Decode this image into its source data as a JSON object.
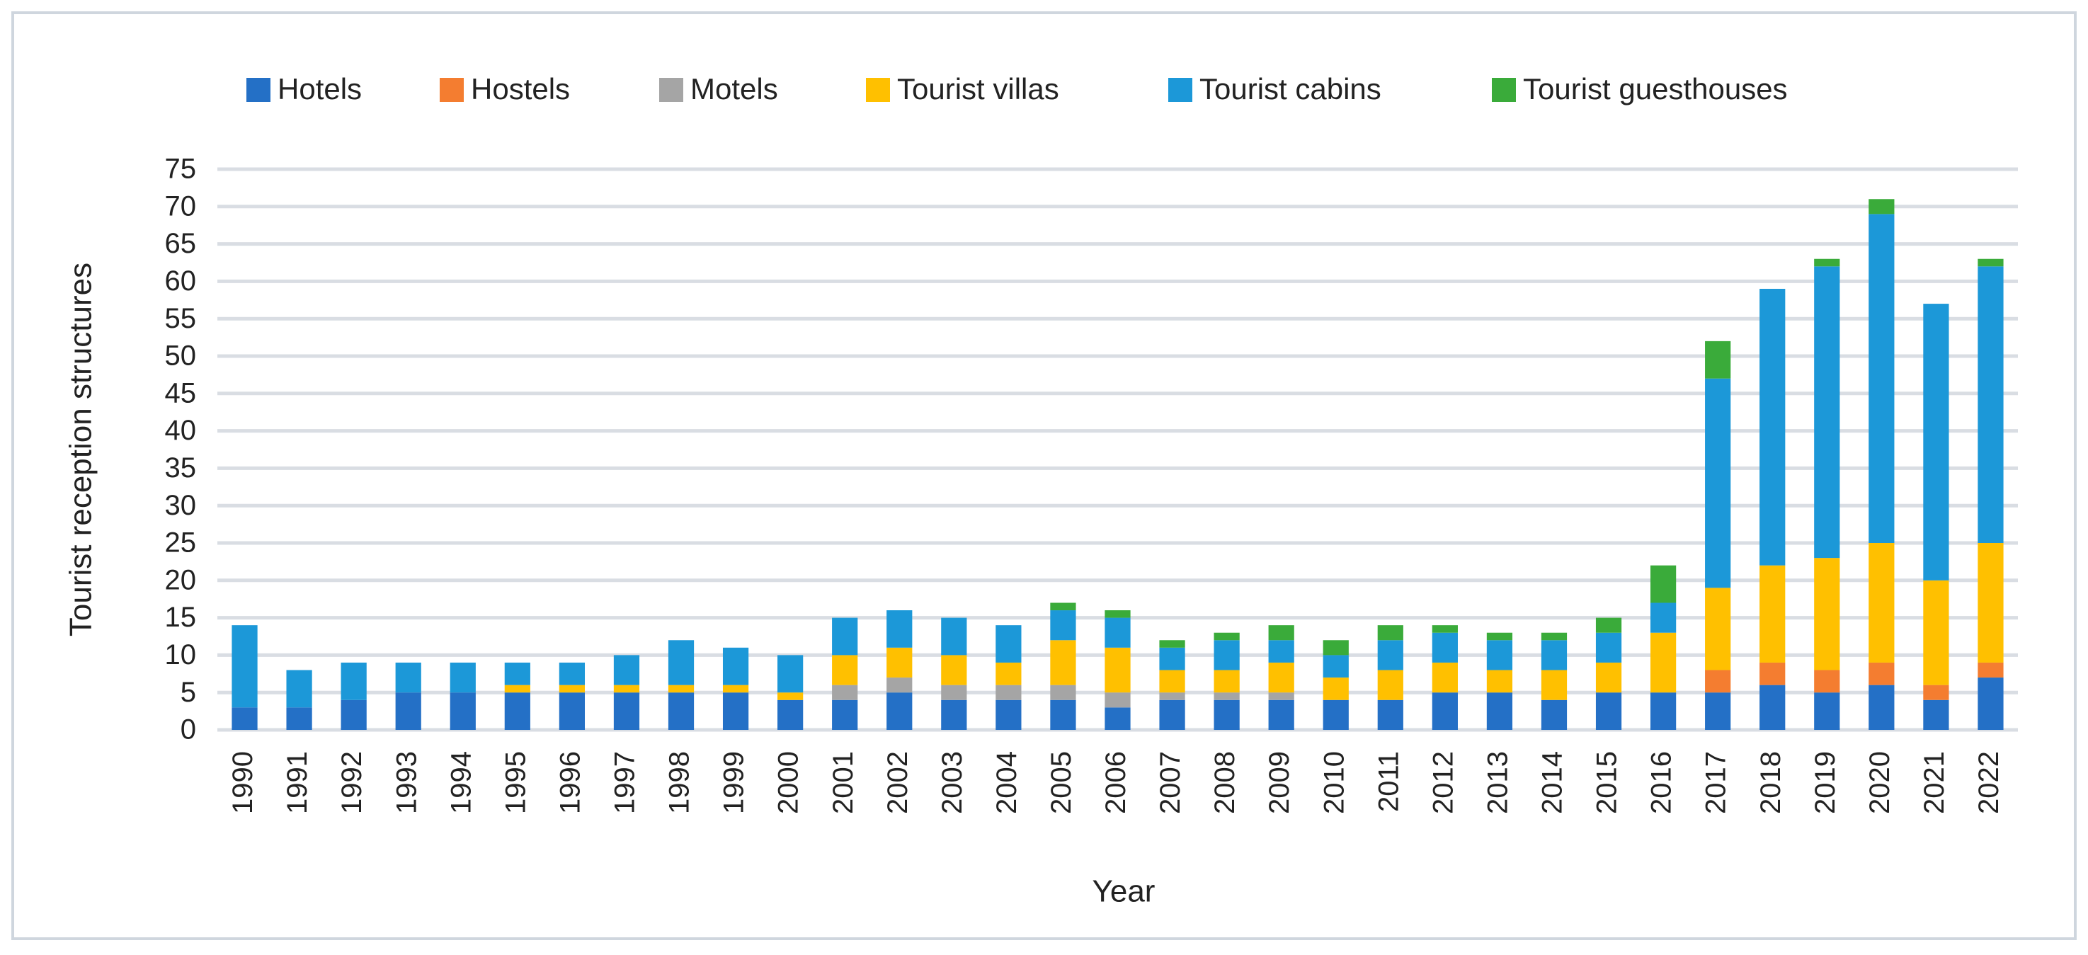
{
  "chart_data": {
    "type": "stacked-bar",
    "x_label": "Year",
    "y_label": "Tourist reception structures",
    "categories": [
      "1990",
      "1991",
      "1992",
      "1993",
      "1994",
      "1995",
      "1996",
      "1997",
      "1998",
      "1999",
      "2000",
      "2001",
      "2002",
      "2003",
      "2004",
      "2005",
      "2006",
      "2007",
      "2008",
      "2009",
      "2010",
      "2011",
      "2012",
      "2013",
      "2014",
      "2015",
      "2016",
      "2017",
      "2018",
      "2019",
      "2020",
      "2021",
      "2022"
    ],
    "series": [
      {
        "name": "Hotels",
        "color": "#2470c6",
        "values": [
          3,
          3,
          4,
          5,
          5,
          5,
          5,
          5,
          5,
          5,
          4,
          4,
          5,
          4,
          4,
          4,
          3,
          4,
          4,
          4,
          4,
          4,
          5,
          5,
          4,
          5,
          5,
          5,
          6,
          5,
          6,
          4,
          7
        ]
      },
      {
        "name": "Hostels",
        "color": "#f47d30",
        "values": [
          0,
          0,
          0,
          0,
          0,
          0,
          0,
          0,
          0,
          0,
          0,
          0,
          0,
          0,
          0,
          0,
          0,
          0,
          0,
          0,
          0,
          0,
          0,
          0,
          0,
          0,
          0,
          3,
          3,
          3,
          3,
          2,
          2
        ]
      },
      {
        "name": "Motels",
        "color": "#a5a5a5",
        "values": [
          0,
          0,
          0,
          0,
          0,
          0,
          0,
          0,
          0,
          0,
          0,
          2,
          2,
          2,
          2,
          2,
          2,
          1,
          1,
          1,
          0,
          0,
          0,
          0,
          0,
          0,
          0,
          0,
          0,
          0,
          0,
          0,
          0
        ]
      },
      {
        "name": "Tourist villas",
        "color": "#ffc000",
        "values": [
          0,
          0,
          0,
          0,
          0,
          1,
          1,
          1,
          1,
          1,
          1,
          4,
          4,
          4,
          3,
          6,
          6,
          3,
          3,
          4,
          3,
          4,
          4,
          3,
          4,
          4,
          8,
          11,
          13,
          15,
          16,
          14,
          16
        ]
      },
      {
        "name": "Tourist cabins",
        "color": "#1c98d8",
        "values": [
          11,
          5,
          5,
          4,
          4,
          3,
          3,
          4,
          6,
          5,
          5,
          5,
          5,
          5,
          5,
          4,
          4,
          3,
          4,
          3,
          3,
          4,
          4,
          4,
          4,
          4,
          4,
          28,
          37,
          39,
          44,
          37,
          37
        ]
      },
      {
        "name": "Tourist guesthouses",
        "color": "#3aab3a",
        "values": [
          0,
          0,
          0,
          0,
          0,
          0,
          0,
          0,
          0,
          0,
          0,
          0,
          0,
          0,
          0,
          1,
          1,
          1,
          1,
          2,
          2,
          2,
          1,
          1,
          1,
          2,
          5,
          5,
          0,
          1,
          2,
          0,
          1
        ]
      }
    ],
    "ylim": [
      0,
      75
    ],
    "yticks": [
      0,
      5,
      10,
      15,
      20,
      25,
      30,
      35,
      40,
      45,
      50,
      55,
      60,
      65,
      70,
      75
    ],
    "grid": true
  }
}
